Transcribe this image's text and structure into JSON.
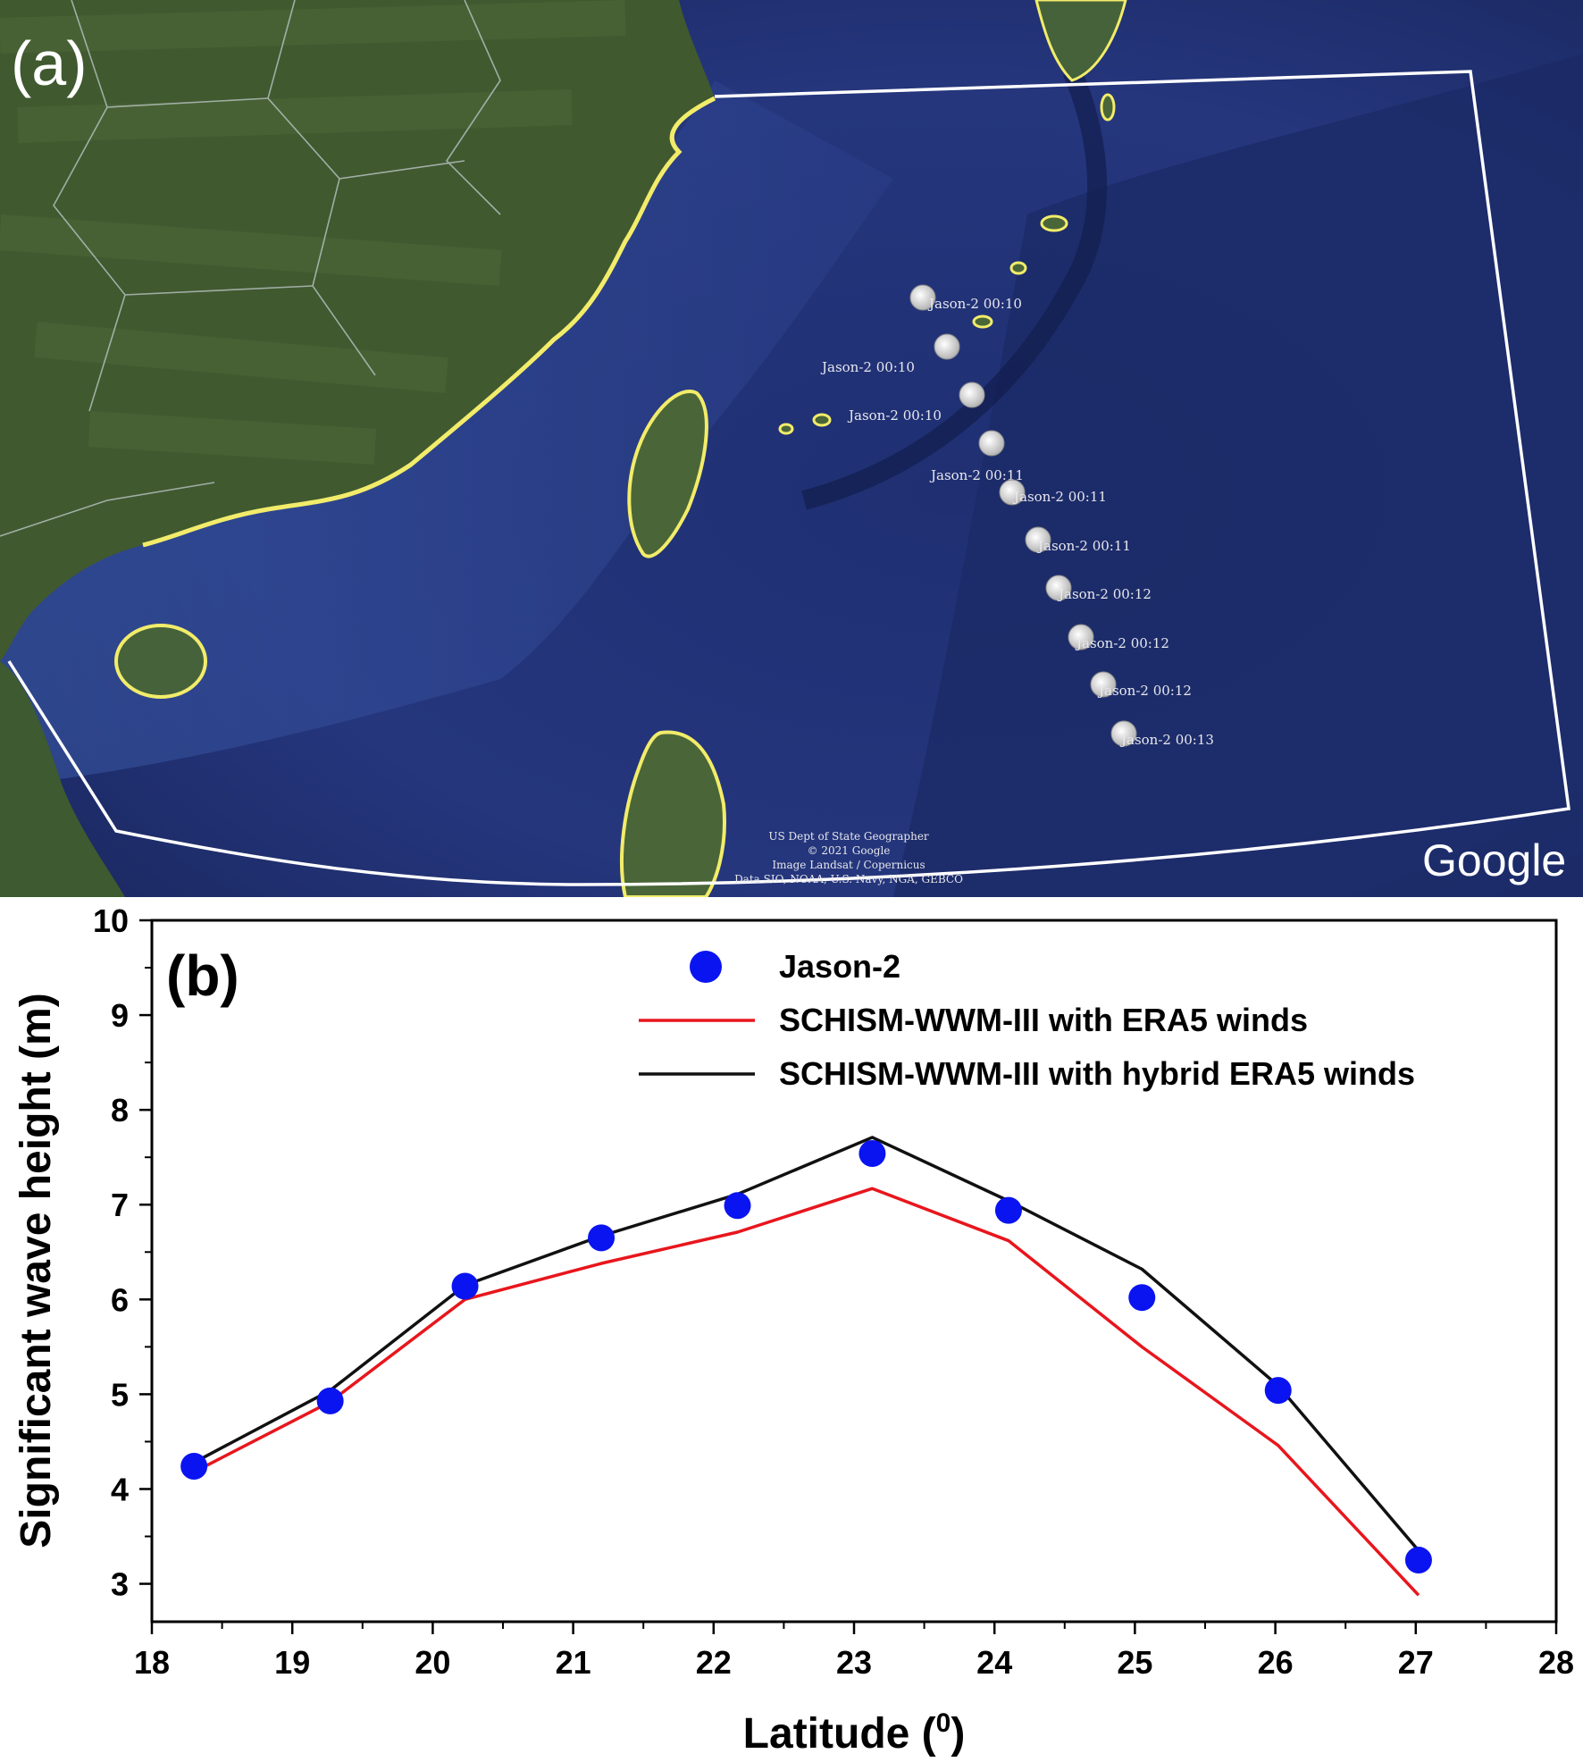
{
  "panel_a": {
    "label": "(a)",
    "points": [
      {
        "label": "Jason-2 00:10"
      },
      {
        "label": "Jason-2 00:10"
      },
      {
        "label": "Jason-2 00:10"
      },
      {
        "label": "Jason-2 00:11"
      },
      {
        "label": "Jason-2 00:11"
      },
      {
        "label": "Jason-2 00:11"
      },
      {
        "label": "Jason-2 00:12"
      },
      {
        "label": "Jason-2 00:12"
      },
      {
        "label": "Jason-2 00:12"
      },
      {
        "label": "Jason-2 00:13"
      }
    ],
    "attribution": [
      "US Dept of State Geographer",
      "© 2021 Google",
      "Image Landsat / Copernicus",
      "Data SIO, NOAA, U.S. Navy, NGA, GEBCO"
    ],
    "logo": "Google",
    "colors": {
      "ocean": "#23347a",
      "deep_ocean": "#1b2a66",
      "land": "#3f5a32",
      "coastline": "#f2ec6a",
      "domain_box": "#ffffff"
    }
  },
  "chart_data": {
    "type": "line",
    "panel_label": "(b)",
    "xlabel": "Latitude (0)",
    "ylabel": "Significant wave height (m)",
    "xlim": [
      18,
      28
    ],
    "ylim": [
      2.6,
      10
    ],
    "xticks": [
      18,
      19,
      20,
      21,
      22,
      23,
      24,
      25,
      26,
      27,
      28
    ],
    "yticks": [
      3,
      4,
      5,
      6,
      7,
      8,
      9,
      10
    ],
    "legend_position": "top-right",
    "grid": false,
    "series": [
      {
        "name": "Jason-2",
        "kind": "scatter",
        "color": "#0a14f0",
        "x": [
          18.3,
          19.27,
          20.23,
          21.2,
          22.17,
          23.13,
          24.1,
          25.05,
          26.02,
          27.02
        ],
        "y": [
          4.24,
          4.93,
          6.14,
          6.65,
          6.99,
          7.54,
          6.94,
          6.02,
          5.04,
          3.25
        ]
      },
      {
        "name": "SCHISM-WWM-III with ERA5 winds",
        "kind": "line",
        "color": "#e8161d",
        "x": [
          18.3,
          19.27,
          20.23,
          21.2,
          22.17,
          23.13,
          24.1,
          25.05,
          26.02,
          27.02
        ],
        "y": [
          4.18,
          4.92,
          6.0,
          6.38,
          6.71,
          7.17,
          6.62,
          5.5,
          4.46,
          2.88
        ]
      },
      {
        "name": "SCHISM-WWM-III with hybrid ERA5 winds",
        "kind": "line",
        "color": "#111111",
        "x": [
          18.3,
          19.27,
          20.23,
          21.2,
          22.17,
          23.13,
          24.1,
          25.05,
          26.02,
          27.02
        ],
        "y": [
          4.28,
          5.04,
          6.15,
          6.67,
          7.11,
          7.71,
          7.04,
          6.32,
          5.09,
          3.35
        ]
      }
    ]
  }
}
